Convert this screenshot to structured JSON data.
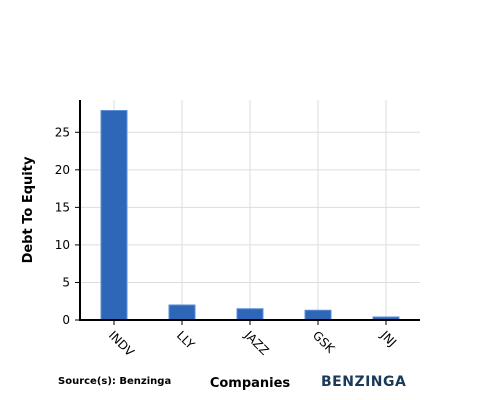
{
  "chart_data": {
    "type": "bar",
    "categories": [
      "INDV",
      "LLY",
      "JAZZ",
      "GSK",
      "JNJ"
    ],
    "values": [
      27.9,
      2.0,
      1.5,
      1.3,
      0.4
    ],
    "xlabel": "Companies",
    "ylabel": "Debt To Equity",
    "ylim": [
      0,
      29.3
    ],
    "yticks": [
      0,
      5,
      10,
      15,
      20,
      25
    ],
    "grid": true,
    "bar_color": "#2f67b8",
    "bar_edge_color": "#5b8fd6"
  },
  "footer": {
    "source": "Source(s): Benzinga",
    "brand": "BENZINGA"
  }
}
